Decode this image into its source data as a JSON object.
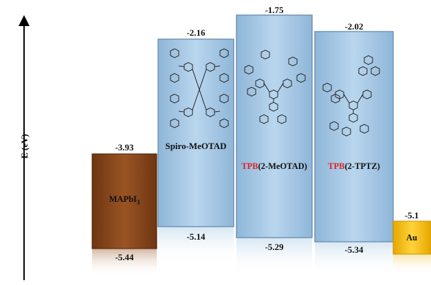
{
  "axis": {
    "label": "E (eV)"
  },
  "colors": {
    "mapbi3": "#8b4a1f",
    "htm": "#a9cbe6",
    "au": "#f3bf1a"
  },
  "levels": [
    {
      "id": "mapbi3",
      "top": "-3.93",
      "bottom": "-5.44"
    },
    {
      "id": "spiro",
      "top": "-2.16",
      "bottom": "-5.14"
    },
    {
      "id": "tpb-meotad",
      "top": "-1.75",
      "bottom": "-5.29"
    },
    {
      "id": "tpb-tptz",
      "top": "-2.02",
      "bottom": "-5.34"
    },
    {
      "id": "au",
      "top": "-5.1"
    }
  ],
  "labels": {
    "mapbi3_main": "MAPbI",
    "mapbi3_sub": "3",
    "spiro": "Spiro-MeOTAD",
    "tpb": "TPB",
    "meotad_suffix": "(2-MeOTAD)",
    "tptz_suffix": "(2-TPTZ)",
    "au": "Au"
  }
}
